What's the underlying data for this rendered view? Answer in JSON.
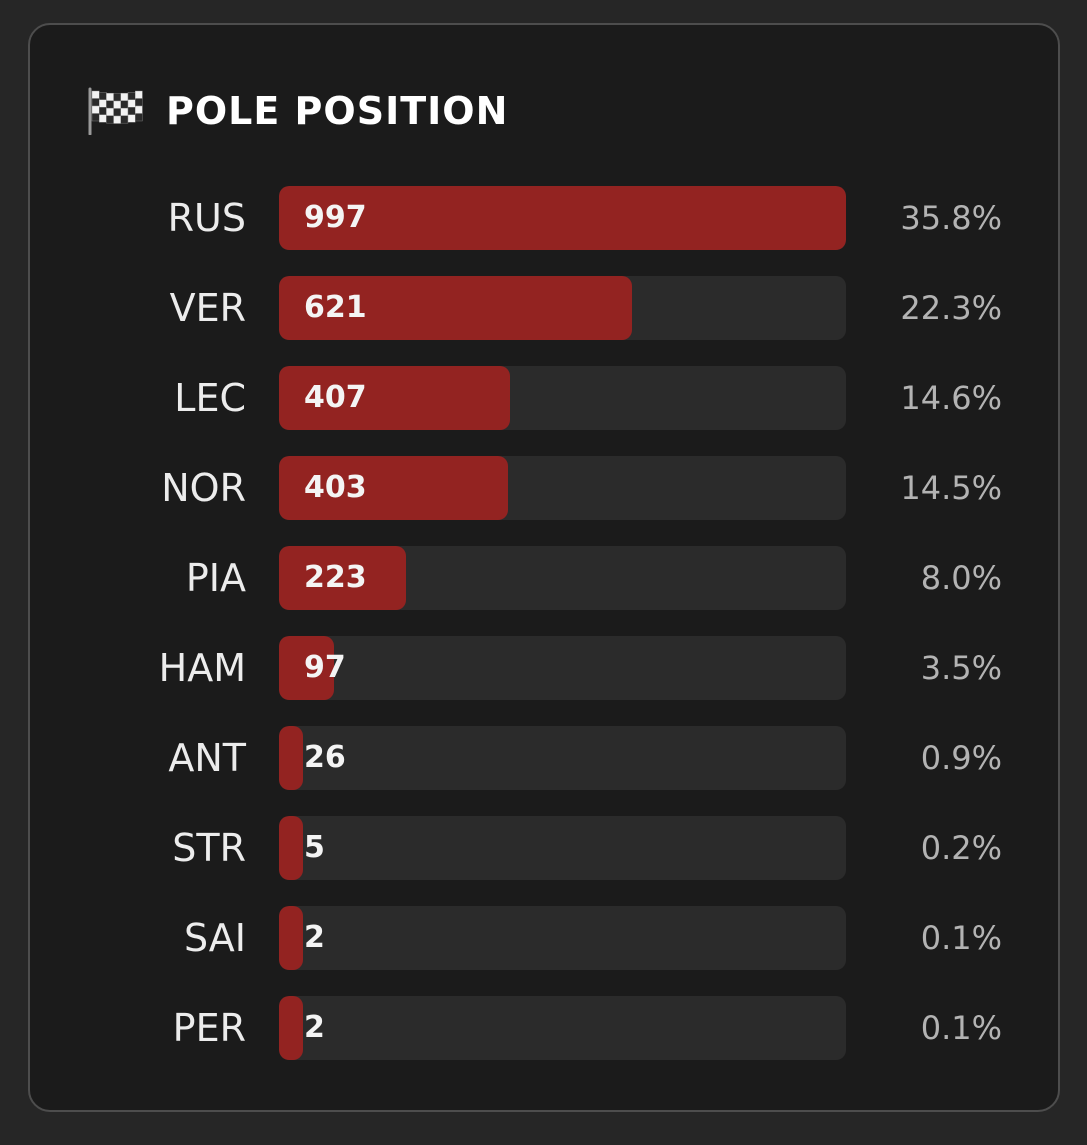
{
  "card": {
    "icon": "checkered-flag-icon",
    "title": "POLE POSITION"
  },
  "colors": {
    "bar_fill": "#932321",
    "bar_track": "#2b2b2b",
    "card_background": "#1b1b1b",
    "page_background": "#262626"
  },
  "chart_data": {
    "type": "bar",
    "orientation": "horizontal",
    "title": "POLE POSITION",
    "categories": [
      "RUS",
      "VER",
      "LEC",
      "NOR",
      "PIA",
      "HAM",
      "ANT",
      "STR",
      "SAI",
      "PER"
    ],
    "values": [
      997,
      621,
      407,
      403,
      223,
      97,
      26,
      5,
      2,
      2
    ],
    "percentages": [
      "35.8%",
      "22.3%",
      "14.6%",
      "14.5%",
      "8.0%",
      "3.5%",
      "0.9%",
      "0.2%",
      "0.1%",
      "0.1%"
    ],
    "xlim": [
      0,
      997
    ],
    "grid": false,
    "legend": "none"
  }
}
